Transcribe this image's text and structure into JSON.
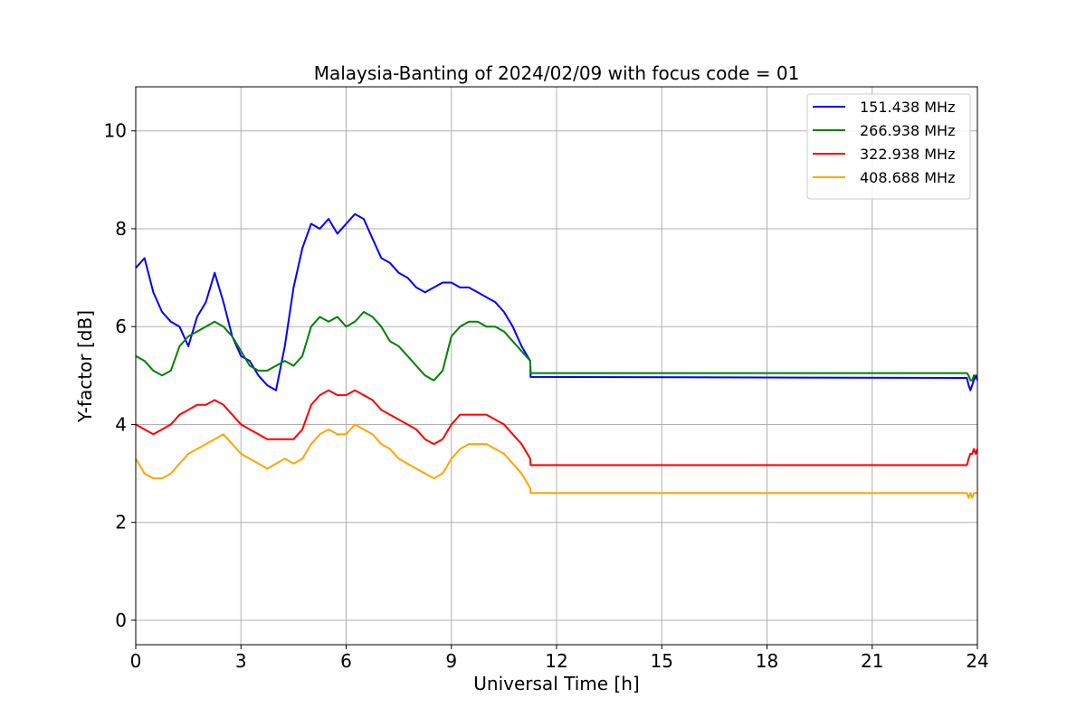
{
  "chart_data": {
    "type": "line",
    "title": "Malaysia-Banting of 2024/02/09 with focus code = 01",
    "xlabel": "Universal Time [h]",
    "ylabel": "Y-factor [dB]",
    "xlim": [
      0,
      24
    ],
    "ylim": [
      -0.5,
      10.9
    ],
    "xticks": [
      0,
      3,
      6,
      9,
      12,
      15,
      18,
      21,
      24
    ],
    "yticks": [
      0,
      2,
      4,
      6,
      8,
      10
    ],
    "grid": true,
    "legend_position": "top-right",
    "series": [
      {
        "name": "151.438 MHz",
        "color": "#0000ff",
        "x": [
          0,
          0.25,
          0.5,
          0.75,
          1,
          1.25,
          1.5,
          1.75,
          2,
          2.25,
          2.5,
          2.75,
          3,
          3.25,
          3.5,
          3.75,
          4,
          4.25,
          4.5,
          4.75,
          5,
          5.25,
          5.5,
          5.75,
          6,
          6.25,
          6.5,
          6.75,
          7,
          7.25,
          7.5,
          7.75,
          8,
          8.25,
          8.5,
          8.75,
          9,
          9.25,
          9.5,
          9.75,
          10,
          10.25,
          10.5,
          10.75,
          11,
          11.25,
          11.26,
          23.7,
          23.75,
          23.8,
          23.85,
          23.9,
          23.95,
          24
        ],
        "y": [
          7.2,
          7.4,
          6.7,
          6.3,
          6.1,
          6.0,
          5.6,
          6.2,
          6.5,
          7.1,
          6.5,
          5.8,
          5.4,
          5.3,
          5.0,
          4.8,
          4.7,
          5.6,
          6.8,
          7.6,
          8.1,
          8.0,
          8.2,
          7.9,
          8.1,
          8.3,
          8.2,
          7.8,
          7.4,
          7.3,
          7.1,
          7.0,
          6.8,
          6.7,
          6.8,
          6.9,
          6.9,
          6.8,
          6.8,
          6.7,
          6.6,
          6.5,
          6.3,
          6.0,
          5.6,
          5.3,
          4.97,
          4.95,
          4.8,
          4.7,
          4.8,
          4.9,
          5.0,
          4.9
        ]
      },
      {
        "name": "266.938 MHz",
        "color": "#008000",
        "x": [
          0,
          0.25,
          0.5,
          0.75,
          1,
          1.25,
          1.5,
          1.75,
          2,
          2.25,
          2.5,
          2.75,
          3,
          3.25,
          3.5,
          3.75,
          4,
          4.25,
          4.5,
          4.75,
          5,
          5.25,
          5.5,
          5.75,
          6,
          6.25,
          6.5,
          6.75,
          7,
          7.25,
          7.5,
          7.75,
          8,
          8.25,
          8.5,
          8.75,
          9,
          9.25,
          9.5,
          9.75,
          10,
          10.25,
          10.5,
          10.75,
          11,
          11.25,
          11.26,
          23.7,
          23.75,
          23.8,
          23.85,
          23.9,
          23.95,
          24
        ],
        "y": [
          5.4,
          5.3,
          5.1,
          5.0,
          5.1,
          5.6,
          5.8,
          5.9,
          6.0,
          6.1,
          6.0,
          5.8,
          5.5,
          5.2,
          5.1,
          5.1,
          5.2,
          5.3,
          5.2,
          5.4,
          6.0,
          6.2,
          6.1,
          6.2,
          6.0,
          6.1,
          6.3,
          6.2,
          6.0,
          5.7,
          5.6,
          5.4,
          5.2,
          5.0,
          4.9,
          5.1,
          5.8,
          6.0,
          6.1,
          6.1,
          6.0,
          6.0,
          5.9,
          5.7,
          5.5,
          5.3,
          5.05,
          5.05,
          5.0,
          4.9,
          4.9,
          5.0,
          5.0,
          5.0
        ]
      },
      {
        "name": "322.938 MHz",
        "color": "#ff0000",
        "x": [
          0,
          0.25,
          0.5,
          0.75,
          1,
          1.25,
          1.5,
          1.75,
          2,
          2.25,
          2.5,
          2.75,
          3,
          3.25,
          3.5,
          3.75,
          4,
          4.25,
          4.5,
          4.75,
          5,
          5.25,
          5.5,
          5.75,
          6,
          6.25,
          6.5,
          6.75,
          7,
          7.25,
          7.5,
          7.75,
          8,
          8.25,
          8.5,
          8.75,
          9,
          9.25,
          9.5,
          9.75,
          10,
          10.25,
          10.5,
          10.75,
          11,
          11.25,
          11.26,
          23.7,
          23.75,
          23.8,
          23.85,
          23.9,
          23.95,
          24
        ],
        "y": [
          4.0,
          3.9,
          3.8,
          3.9,
          4.0,
          4.2,
          4.3,
          4.4,
          4.4,
          4.5,
          4.4,
          4.2,
          4.0,
          3.9,
          3.8,
          3.7,
          3.7,
          3.7,
          3.7,
          3.9,
          4.4,
          4.6,
          4.7,
          4.6,
          4.6,
          4.7,
          4.6,
          4.5,
          4.3,
          4.2,
          4.1,
          4.0,
          3.9,
          3.7,
          3.6,
          3.7,
          4.0,
          4.2,
          4.2,
          4.2,
          4.2,
          4.1,
          4.0,
          3.8,
          3.6,
          3.3,
          3.17,
          3.17,
          3.3,
          3.4,
          3.4,
          3.5,
          3.4,
          3.5
        ]
      },
      {
        "name": "408.688 MHz",
        "color": "#ffa500",
        "x": [
          0,
          0.25,
          0.5,
          0.75,
          1,
          1.25,
          1.5,
          1.75,
          2,
          2.25,
          2.5,
          2.75,
          3,
          3.25,
          3.5,
          3.75,
          4,
          4.25,
          4.5,
          4.75,
          5,
          5.25,
          5.5,
          5.75,
          6,
          6.25,
          6.5,
          6.75,
          7,
          7.25,
          7.5,
          7.75,
          8,
          8.25,
          8.5,
          8.75,
          9,
          9.25,
          9.5,
          9.75,
          10,
          10.25,
          10.5,
          10.75,
          11,
          11.25,
          11.26,
          23.7,
          23.75,
          23.8,
          23.85,
          23.9,
          23.95,
          24
        ],
        "y": [
          3.3,
          3.0,
          2.9,
          2.9,
          3.0,
          3.2,
          3.4,
          3.5,
          3.6,
          3.7,
          3.8,
          3.6,
          3.4,
          3.3,
          3.2,
          3.1,
          3.2,
          3.3,
          3.2,
          3.3,
          3.6,
          3.8,
          3.9,
          3.8,
          3.8,
          4.0,
          3.9,
          3.8,
          3.6,
          3.5,
          3.3,
          3.2,
          3.1,
          3.0,
          2.9,
          3.0,
          3.3,
          3.5,
          3.6,
          3.6,
          3.6,
          3.5,
          3.4,
          3.2,
          3.0,
          2.7,
          2.6,
          2.6,
          2.5,
          2.6,
          2.5,
          2.6,
          2.6,
          2.6
        ]
      }
    ]
  }
}
